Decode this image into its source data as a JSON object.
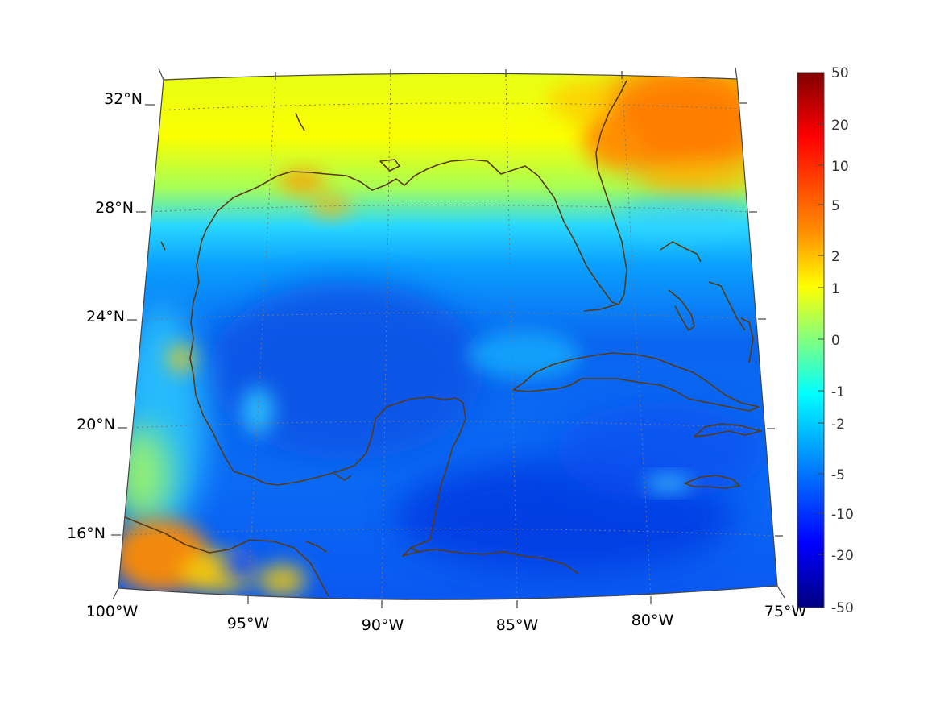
{
  "map": {
    "title": "",
    "projection": "conic",
    "region": "Gulf of Mexico and Caribbean",
    "lon_range": [
      -100,
      -75
    ],
    "lat_range": [
      14,
      33
    ],
    "lon_ticks": [
      {
        "value": -100,
        "label": "100°W"
      },
      {
        "value": -95,
        "label": "95°W"
      },
      {
        "value": -90,
        "label": "90°W"
      },
      {
        "value": -85,
        "label": "85°W"
      },
      {
        "value": -80,
        "label": "80°W"
      },
      {
        "value": -75,
        "label": "75°W"
      }
    ],
    "lat_ticks": [
      {
        "value": 32,
        "label": "32°N"
      },
      {
        "value": 28,
        "label": "28°N"
      },
      {
        "value": 24,
        "label": "24°N"
      },
      {
        "value": 20,
        "label": "20°N"
      },
      {
        "value": 16,
        "label": "16°N"
      }
    ],
    "coastline_color": "#5a3a12",
    "grid": "dotted"
  },
  "colorbar": {
    "colormap": "jet",
    "scale": "nonlinear",
    "tick_labels": [
      "50",
      "20",
      "10",
      "5",
      "2",
      "1",
      "0",
      "-1",
      "-2",
      "-5",
      "-10",
      "-20",
      "-50"
    ],
    "colors": [
      "#800000",
      "#ff0000",
      "#ff8000",
      "#ffff00",
      "#80ff80",
      "#00ffff",
      "#0080ff",
      "#0000ff",
      "#000080"
    ]
  }
}
